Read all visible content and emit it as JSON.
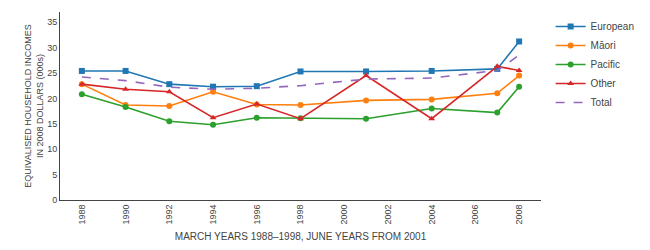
{
  "chart_data": {
    "type": "line",
    "xlabel": "MARCH YEARS 1988–1998, JUNE YEARS FROM 2001",
    "ylabel": "EQUIVALISED HOUSEHOLD INCOMES\nIN 2008 DOLLARS (000s)",
    "x": [
      1988,
      1990,
      1992,
      1994,
      1996,
      1998,
      2001,
      2004,
      2007,
      2008
    ],
    "series": [
      {
        "name": "European",
        "marker": "square",
        "line_style": "solid",
        "values": [
          25.4,
          25.4,
          22.8,
          22.3,
          22.4,
          25.3,
          25.3,
          25.4,
          25.8,
          31.2
        ]
      },
      {
        "name": "Māori",
        "marker": "circle",
        "line_style": "solid",
        "values": [
          22.8,
          18.7,
          18.5,
          21.3,
          18.8,
          18.7,
          19.6,
          19.8,
          21.0,
          24.5
        ]
      },
      {
        "name": "Pacific",
        "marker": "circle",
        "line_style": "solid",
        "values": [
          20.8,
          18.3,
          15.5,
          14.8,
          16.2,
          16.1,
          16.0,
          18.0,
          17.2,
          22.3
        ]
      },
      {
        "name": "Other",
        "marker": "triangle-up",
        "line_style": "solid",
        "values": [
          22.8,
          21.8,
          21.3,
          16.2,
          18.9,
          16.0,
          24.5,
          16.0,
          26.3,
          25.5
        ]
      },
      {
        "name": "Total",
        "marker": "none",
        "line_style": "dashed",
        "values": [
          24.2,
          23.5,
          22.2,
          21.8,
          22.0,
          22.5,
          23.8,
          24.0,
          25.5,
          28.5
        ]
      }
    ],
    "xlim": [
      1987,
      2009
    ],
    "xticks": [
      1988,
      1990,
      1992,
      1994,
      1996,
      1998,
      2000,
      2002,
      2004,
      2006,
      2008
    ],
    "ylim": [
      0,
      37
    ],
    "yticks": [
      0,
      5,
      10,
      15,
      20,
      25,
      30,
      35
    ],
    "grid": false,
    "legend": "right"
  }
}
